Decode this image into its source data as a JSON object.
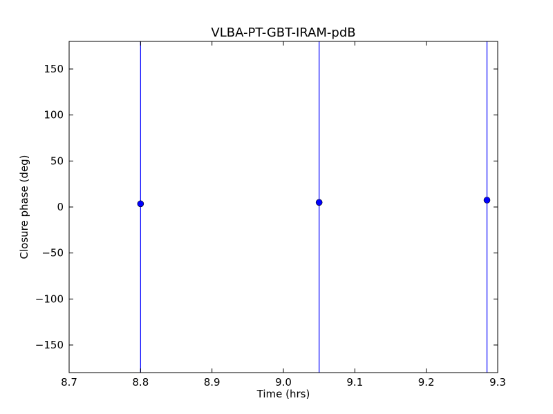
{
  "chart_data": {
    "type": "scatter",
    "title": "VLBA-PT-GBT-IRAM-pdB",
    "xlabel": "Time (hrs)",
    "ylabel": "Closure phase (deg)",
    "xlim": [
      8.7,
      9.3
    ],
    "ylim": [
      -180,
      180
    ],
    "xticks": [
      8.7,
      8.8,
      8.9,
      9.0,
      9.1,
      9.2,
      9.3
    ],
    "xtick_labels": [
      "8.7",
      "8.8",
      "8.9",
      "9.0",
      "9.1",
      "9.2",
      "9.3"
    ],
    "yticks": [
      -150,
      -100,
      -50,
      0,
      50,
      100,
      150
    ],
    "ytick_labels": [
      "−150",
      "−100",
      "−50",
      "0",
      "50",
      "100",
      "150"
    ],
    "grid": false,
    "series": [
      {
        "color": "#0000ff",
        "error_bars": "spans full y range",
        "points": [
          {
            "x": 8.8,
            "y": 3.5
          },
          {
            "x": 9.05,
            "y": 5.0
          },
          {
            "x": 9.285,
            "y": 7.5
          }
        ]
      }
    ]
  }
}
